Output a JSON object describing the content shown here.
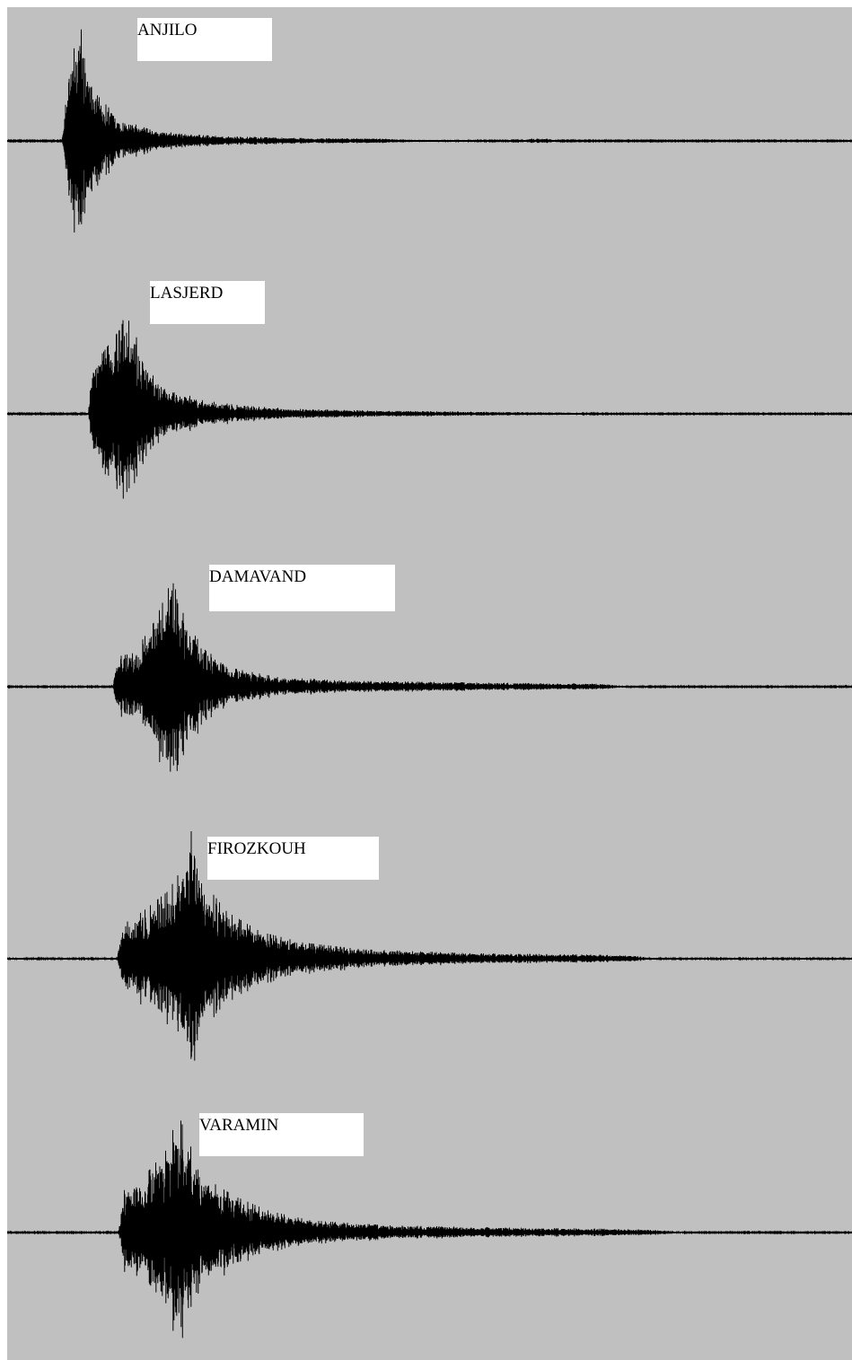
{
  "chart_data": {
    "type": "line",
    "title": "",
    "xlabel": "",
    "ylabel": "",
    "grid": false,
    "background_color": "#c0c0c0",
    "trace_color": "#000000",
    "label_box_color": "#ffffff",
    "series": [
      {
        "name": "ANJILO",
        "envelope": [
          [
            0.0,
            0.005
          ],
          [
            6.5,
            0.005
          ],
          [
            6.9,
            0.45
          ],
          [
            7.5,
            0.7
          ],
          [
            8.0,
            0.85
          ],
          [
            8.8,
            1.0
          ],
          [
            9.5,
            0.65
          ],
          [
            10.5,
            0.42
          ],
          [
            12.0,
            0.3
          ],
          [
            14.0,
            0.18
          ],
          [
            17.0,
            0.1
          ],
          [
            21.0,
            0.06
          ],
          [
            26.0,
            0.04
          ],
          [
            35.0,
            0.025
          ],
          [
            44.0,
            0.02
          ],
          [
            48.0,
            0.01
          ],
          [
            61.0,
            0.005
          ],
          [
            62.0,
            0.02
          ],
          [
            64.0,
            0.02
          ],
          [
            65.0,
            0.005
          ],
          [
            100.0,
            0.004
          ]
        ]
      },
      {
        "name": "LASJERD",
        "envelope": [
          [
            0.0,
            0.005
          ],
          [
            9.6,
            0.005
          ],
          [
            10.0,
            0.4
          ],
          [
            11.5,
            0.55
          ],
          [
            13.5,
            0.75
          ],
          [
            14.3,
            1.0
          ],
          [
            15.5,
            0.6
          ],
          [
            17.5,
            0.3
          ],
          [
            20.0,
            0.2
          ],
          [
            23.0,
            0.12
          ],
          [
            28.0,
            0.07
          ],
          [
            35.0,
            0.04
          ],
          [
            45.0,
            0.025
          ],
          [
            60.0,
            0.015
          ],
          [
            66.0,
            0.012
          ],
          [
            70.0,
            0.004
          ],
          [
            100.0,
            0.004
          ]
        ]
      },
      {
        "name": "DAMAVAND",
        "envelope": [
          [
            0.0,
            0.004
          ],
          [
            12.5,
            0.004
          ],
          [
            13.0,
            0.25
          ],
          [
            15.0,
            0.28
          ],
          [
            17.5,
            0.55
          ],
          [
            19.0,
            0.8
          ],
          [
            19.8,
            1.0
          ],
          [
            21.0,
            0.55
          ],
          [
            23.5,
            0.3
          ],
          [
            27.0,
            0.15
          ],
          [
            32.0,
            0.08
          ],
          [
            40.0,
            0.05
          ],
          [
            55.0,
            0.035
          ],
          [
            70.0,
            0.025
          ],
          [
            74.0,
            0.004
          ],
          [
            100.0,
            0.004
          ]
        ]
      },
      {
        "name": "FIROZKOUH",
        "envelope": [
          [
            0.0,
            0.006
          ],
          [
            13.0,
            0.006
          ],
          [
            13.6,
            0.25
          ],
          [
            16.0,
            0.35
          ],
          [
            19.0,
            0.5
          ],
          [
            20.5,
            0.65
          ],
          [
            21.2,
            0.8
          ],
          [
            22.0,
            1.0
          ],
          [
            23.5,
            0.55
          ],
          [
            26.0,
            0.35
          ],
          [
            30.0,
            0.2
          ],
          [
            35.0,
            0.12
          ],
          [
            42.0,
            0.07
          ],
          [
            55.0,
            0.04
          ],
          [
            70.0,
            0.03
          ],
          [
            75.0,
            0.02
          ],
          [
            76.0,
            0.006
          ],
          [
            100.0,
            0.006
          ]
        ]
      },
      {
        "name": "VARAMIN",
        "envelope": [
          [
            0.0,
            0.004
          ],
          [
            13.2,
            0.004
          ],
          [
            13.8,
            0.35
          ],
          [
            16.0,
            0.45
          ],
          [
            19.0,
            0.7
          ],
          [
            20.2,
            1.0
          ],
          [
            21.5,
            0.75
          ],
          [
            23.5,
            0.45
          ],
          [
            27.0,
            0.3
          ],
          [
            31.0,
            0.18
          ],
          [
            36.0,
            0.1
          ],
          [
            45.0,
            0.06
          ],
          [
            60.0,
            0.04
          ],
          [
            72.0,
            0.03
          ],
          [
            77.0,
            0.02
          ],
          [
            80.0,
            0.004
          ],
          [
            100.0,
            0.004
          ]
        ]
      }
    ]
  }
}
